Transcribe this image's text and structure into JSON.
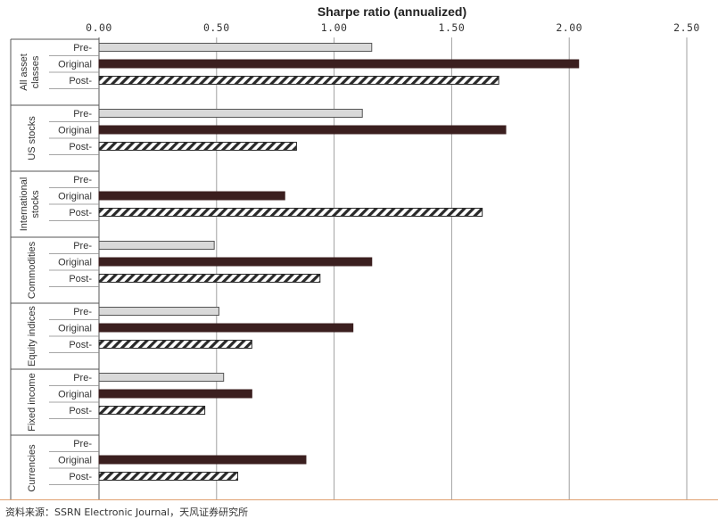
{
  "chart_data": {
    "type": "bar",
    "orientation": "horizontal",
    "title": "Sharpe ratio (annualized)",
    "xlim": [
      0,
      2.5
    ],
    "xticks": [
      "0.00",
      "0.50",
      "1.00",
      "1.50",
      "2.00",
      "2.50"
    ],
    "xtick_values": [
      0,
      0.5,
      1.0,
      1.5,
      2.0,
      2.5
    ],
    "grid": "vertical",
    "series_labels": [
      "Pre-",
      "Original",
      "Post-"
    ],
    "series_styles": [
      {
        "fill": "#d9d9d9",
        "stroke": "#555555",
        "pattern": "solid"
      },
      {
        "fill": "#3b1f1f",
        "stroke": "#3b1f1f",
        "pattern": "solid"
      },
      {
        "fill": "#ffffff",
        "stroke": "#2a2a2a",
        "pattern": "diagonal-hatch"
      }
    ],
    "groups": [
      {
        "label": "All asset classes",
        "label_lines": [
          "All asset",
          "classes"
        ],
        "values": [
          1.16,
          2.04,
          1.7
        ]
      },
      {
        "label": "US stocks",
        "label_lines": [
          "US stocks"
        ],
        "values": [
          1.12,
          1.73,
          0.84
        ]
      },
      {
        "label": "International stocks",
        "label_lines": [
          "International",
          "stocks"
        ],
        "values": [
          null,
          0.79,
          1.63
        ]
      },
      {
        "label": "Commodities",
        "label_lines": [
          "Commodities"
        ],
        "values": [
          0.49,
          1.16,
          0.94
        ]
      },
      {
        "label": "Equity indices",
        "label_lines": [
          "Equity indices"
        ],
        "values": [
          0.51,
          1.08,
          0.65
        ]
      },
      {
        "label": "Fixed income",
        "label_lines": [
          "Fixed income"
        ],
        "values": [
          0.53,
          0.65,
          0.45
        ]
      },
      {
        "label": "Currencies",
        "label_lines": [
          "Currencies"
        ],
        "values": [
          null,
          0.88,
          0.59
        ]
      }
    ]
  },
  "source": "资料来源：SSRN Electronic Journal，天风证券研究所",
  "colors": {
    "grid": "#a0a0a0",
    "axis": "#555555",
    "source_rule": "#e0a070"
  }
}
